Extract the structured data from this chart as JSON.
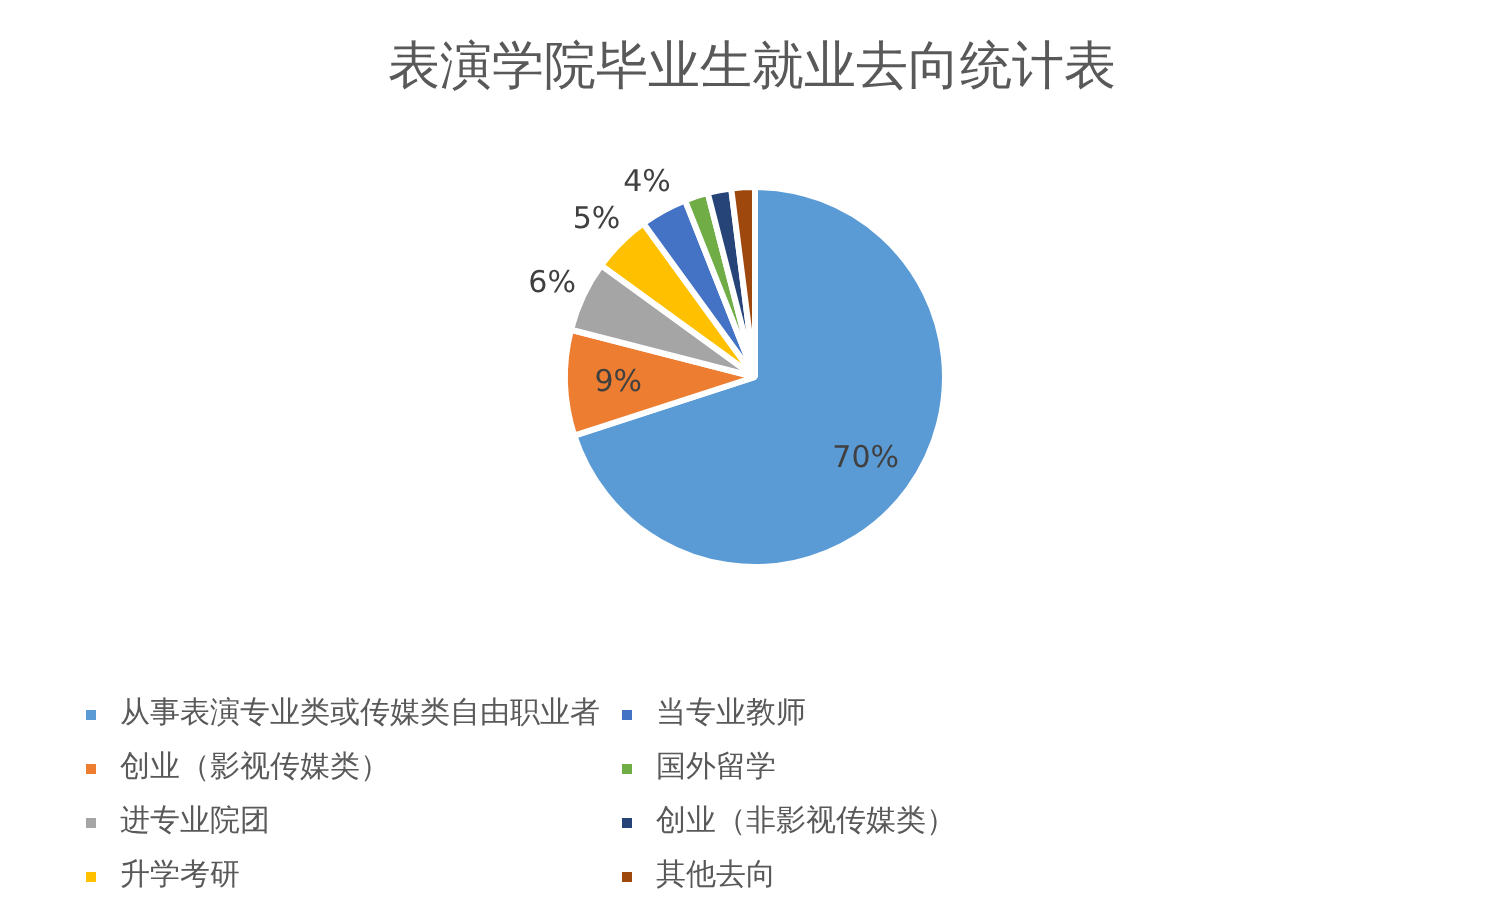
{
  "chart_data": {
    "type": "pie",
    "title": "表演学院毕业生就业去向统计表",
    "categories": [
      "从事表演专业类或传媒类自由职业者",
      "创业（影视传媒类）",
      "进专业院团",
      "升学考研",
      "当专业教师",
      "国外留学",
      "创业（非影视传媒类）",
      "其他去向"
    ],
    "values": [
      70,
      9,
      6,
      5,
      4,
      2,
      2,
      2
    ],
    "colors": [
      "#5b9bd5",
      "#ed7d31",
      "#a5a5a5",
      "#ffc000",
      "#4472c4",
      "#70ad47",
      "#264478",
      "#9e480e"
    ],
    "value_labels": [
      "70%",
      "9%",
      "6%",
      "5%",
      "4%",
      null,
      null,
      null
    ],
    "legend": "bottom"
  }
}
